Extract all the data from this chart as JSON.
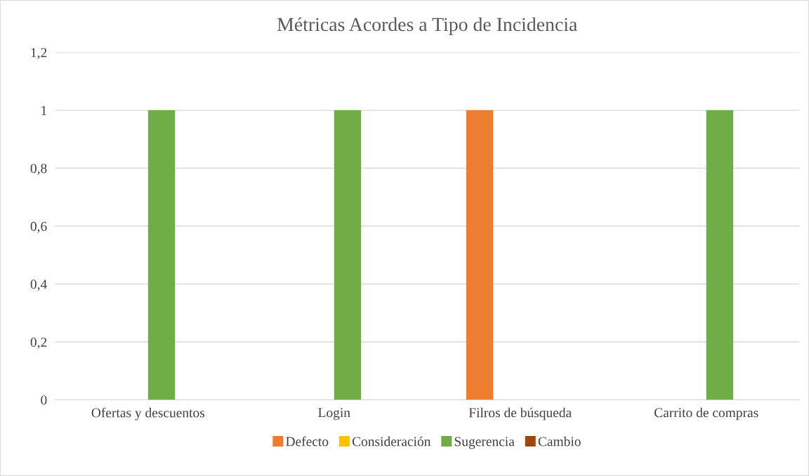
{
  "chart_data": {
    "type": "bar",
    "title": "Métricas Acordes a Tipo de Incidencia",
    "categories": [
      "Ofertas y descuentos",
      "Login",
      "Filros de búsqueda",
      "Carrito de compras"
    ],
    "series": [
      {
        "name": "Defecto",
        "color": "#ed7d31",
        "values": [
          0,
          0,
          1,
          0
        ]
      },
      {
        "name": "Consideración",
        "color": "#ffc000",
        "values": [
          0,
          0,
          0,
          0
        ]
      },
      {
        "name": "Sugerencia",
        "color": "#70ad47",
        "values": [
          1,
          1,
          0,
          1
        ]
      },
      {
        "name": "Cambio",
        "color": "#9e480e",
        "values": [
          0,
          0,
          0,
          0
        ]
      }
    ],
    "ylim": [
      0,
      1.2
    ],
    "yticks": [
      0,
      {
        "value": 0.2,
        "label": "0,2"
      },
      {
        "value": 0.4,
        "label": "0,4"
      },
      {
        "value": 0.6,
        "label": "0,6"
      },
      {
        "value": 0.8,
        "label": "0,8"
      },
      1,
      {
        "value": 1.2,
        "label": "1,2"
      }
    ],
    "grid": "y",
    "legend": "bottom"
  }
}
